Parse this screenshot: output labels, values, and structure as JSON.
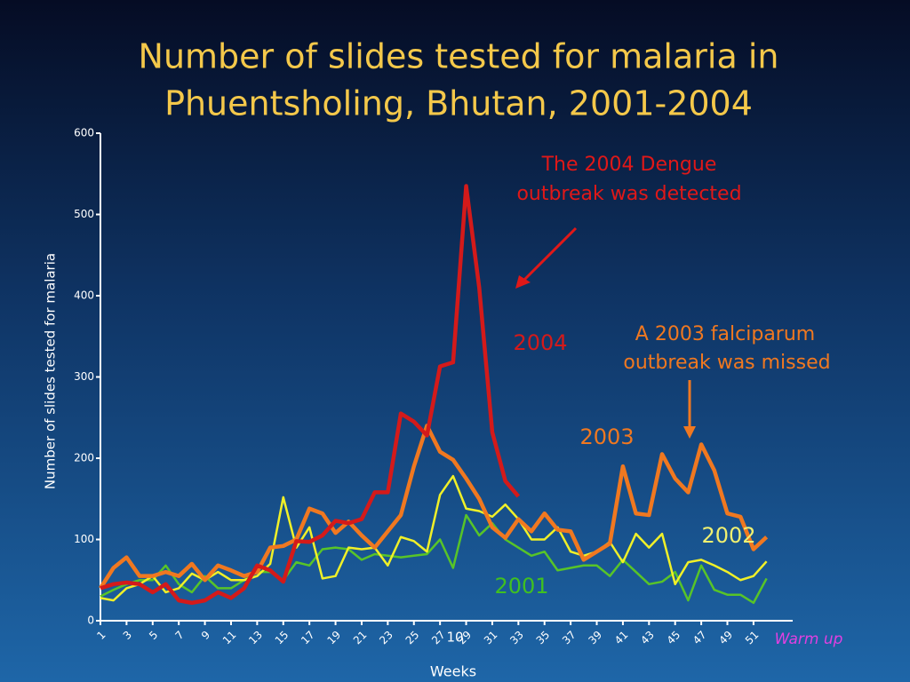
{
  "chart_data": {
    "type": "line",
    "title_lines": [
      "Number of slides tested for malaria in",
      "Phuentsholing, Bhutan, 2001-2004"
    ],
    "x_label": "Weeks",
    "y_label": "Number of slides tested for malaria",
    "x": [
      1,
      2,
      3,
      4,
      5,
      6,
      7,
      8,
      9,
      10,
      11,
      12,
      13,
      14,
      15,
      16,
      17,
      18,
      19,
      20,
      21,
      22,
      23,
      24,
      25,
      26,
      27,
      28,
      29,
      30,
      31,
      32,
      33,
      34,
      35,
      36,
      37,
      38,
      39,
      40,
      41,
      42,
      43,
      44,
      45,
      46,
      47,
      48,
      49,
      50,
      51,
      52
    ],
    "xlim": [
      1,
      54
    ],
    "xticks": [
      1,
      3,
      5,
      7,
      9,
      11,
      13,
      15,
      17,
      19,
      21,
      23,
      25,
      27,
      29,
      31,
      33,
      35,
      37,
      39,
      41,
      43,
      45,
      47,
      49,
      51
    ],
    "ylim": [
      0,
      600
    ],
    "yticks": [
      0,
      100,
      200,
      300,
      400,
      500,
      600
    ],
    "series": [
      {
        "name": "2004",
        "color": "#d41a1a",
        "values": [
          40,
          45,
          47,
          45,
          35,
          45,
          25,
          22,
          25,
          35,
          28,
          40,
          68,
          62,
          48,
          98,
          97,
          105,
          123,
          120,
          125,
          158,
          158,
          255,
          245,
          228,
          313,
          318,
          535,
          410,
          232,
          172,
          153,
          null,
          null,
          null,
          null,
          null,
          null,
          null,
          null,
          null,
          null,
          null,
          null,
          null,
          null,
          null,
          null,
          null,
          null,
          null
        ]
      },
      {
        "name": "2003",
        "color": "#f07820",
        "values": [
          40,
          65,
          78,
          55,
          55,
          60,
          55,
          70,
          50,
          68,
          62,
          55,
          60,
          90,
          92,
          100,
          138,
          132,
          108,
          122,
          105,
          90,
          110,
          130,
          190,
          240,
          208,
          198,
          175,
          150,
          115,
          102,
          125,
          110,
          132,
          112,
          110,
          75,
          85,
          95,
          190,
          132,
          130,
          205,
          175,
          158,
          217,
          185,
          132,
          128,
          88,
          103
        ]
      },
      {
        "name": "2002",
        "color": "#f0f028",
        "values": [
          28,
          25,
          40,
          45,
          55,
          35,
          40,
          58,
          50,
          60,
          50,
          50,
          55,
          70,
          152,
          90,
          115,
          52,
          55,
          90,
          88,
          90,
          68,
          103,
          98,
          85,
          155,
          178,
          138,
          135,
          128,
          143,
          125,
          100,
          100,
          115,
          85,
          80,
          85,
          97,
          72,
          107,
          90,
          107,
          45,
          72,
          75,
          68,
          60,
          50,
          55,
          73
        ]
      },
      {
        "name": "2001",
        "color": "#58c428",
        "values": [
          30,
          38,
          45,
          50,
          50,
          68,
          45,
          35,
          55,
          40,
          40,
          50,
          60,
          60,
          50,
          72,
          68,
          88,
          90,
          88,
          75,
          82,
          80,
          78,
          80,
          82,
          100,
          65,
          130,
          105,
          120,
          100,
          90,
          80,
          85,
          62,
          65,
          68,
          68,
          55,
          75,
          60,
          45,
          48,
          60,
          25,
          68,
          38,
          32,
          32,
          22,
          52
        ]
      }
    ],
    "annotations": [
      {
        "lines": [
          "The 2004 Dengue",
          "outbreak was detected"
        ],
        "color": "#e01818"
      },
      {
        "lines": [
          "A 2003 falciparum",
          "outbreak was missed"
        ],
        "color": "#f07820"
      },
      {
        "lines": [
          "Warm up"
        ],
        "color": "#e040e0"
      },
      {
        "lines": [
          "10"
        ],
        "color": "#ffffff"
      }
    ]
  }
}
